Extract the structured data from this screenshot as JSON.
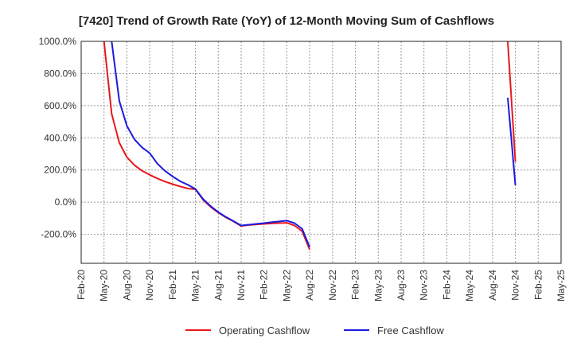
{
  "chart_data": {
    "type": "line",
    "title": "[7420]  Trend of Growth Rate (YoY) of 12-Month Moving Sum of Cashflows",
    "xlabel": "",
    "ylabel": "",
    "x_ticks": [
      "Feb-20",
      "May-20",
      "Aug-20",
      "Nov-20",
      "Feb-21",
      "May-21",
      "Aug-21",
      "Nov-21",
      "Feb-22",
      "May-22",
      "Aug-22",
      "Nov-22",
      "Feb-23",
      "May-23",
      "Aug-23",
      "Nov-23",
      "Feb-24",
      "May-24",
      "Aug-24",
      "Nov-24",
      "Feb-25",
      "May-25"
    ],
    "y_ticks": [
      1000,
      800,
      600,
      400,
      200,
      0,
      -200
    ],
    "y_tick_labels": [
      "1000.0%",
      "800.0%",
      "600.0%",
      "400.0%",
      "200.0%",
      "0.0%",
      "-200.0%"
    ],
    "ylim": [
      -380,
      1000
    ],
    "x_range": [
      "Feb-20",
      "May-25"
    ],
    "grid": true,
    "legend_position": "bottom",
    "series": [
      {
        "name": "Operating Cashflow",
        "color": "#e8191b",
        "segments": [
          [
            [
              "2020-05",
              1000
            ],
            [
              "2020-06",
              550
            ],
            [
              "2020-07",
              370
            ],
            [
              "2020-08",
              280
            ],
            [
              "2020-09",
              230
            ],
            [
              "2020-10",
              195
            ],
            [
              "2020-11",
              170
            ],
            [
              "2020-12",
              148
            ],
            [
              "2021-01",
              128
            ],
            [
              "2021-02",
              112
            ],
            [
              "2021-03",
              98
            ],
            [
              "2021-04",
              85
            ],
            [
              "2021-05",
              80
            ],
            [
              "2021-06",
              15
            ],
            [
              "2021-07",
              -30
            ],
            [
              "2021-08",
              -65
            ],
            [
              "2021-09",
              -95
            ],
            [
              "2021-10",
              -120
            ],
            [
              "2021-11",
              -148
            ],
            [
              "2021-12",
              -142
            ],
            [
              "2022-01",
              -138
            ],
            [
              "2022-02",
              -135
            ],
            [
              "2022-03",
              -132
            ],
            [
              "2022-04",
              -130
            ],
            [
              "2022-05",
              -128
            ],
            [
              "2022-06",
              -145
            ],
            [
              "2022-07",
              -180
            ],
            [
              "2022-08",
              -295
            ]
          ],
          [
            [
              "2024-10",
              1000
            ],
            [
              "2024-11",
              250
            ]
          ]
        ]
      },
      {
        "name": "Free Cashflow",
        "color": "#1a1adf",
        "segments": [
          [
            [
              "2020-06",
              1000
            ],
            [
              "2020-07",
              630
            ],
            [
              "2020-08",
              475
            ],
            [
              "2020-09",
              390
            ],
            [
              "2020-10",
              340
            ],
            [
              "2020-11",
              305
            ],
            [
              "2020-12",
              240
            ],
            [
              "2021-01",
              195
            ],
            [
              "2021-02",
              160
            ],
            [
              "2021-03",
              130
            ],
            [
              "2021-04",
              108
            ],
            [
              "2021-05",
              82
            ],
            [
              "2021-06",
              20
            ],
            [
              "2021-07",
              -25
            ],
            [
              "2021-08",
              -62
            ],
            [
              "2021-09",
              -92
            ],
            [
              "2021-10",
              -118
            ],
            [
              "2021-11",
              -145
            ],
            [
              "2021-12",
              -140
            ],
            [
              "2022-01",
              -135
            ],
            [
              "2022-02",
              -130
            ],
            [
              "2022-03",
              -125
            ],
            [
              "2022-04",
              -120
            ],
            [
              "2022-05",
              -115
            ],
            [
              "2022-06",
              -130
            ],
            [
              "2022-07",
              -165
            ],
            [
              "2022-08",
              -280
            ]
          ],
          [
            [
              "2024-10",
              650
            ],
            [
              "2024-11",
              105
            ]
          ]
        ]
      }
    ]
  }
}
